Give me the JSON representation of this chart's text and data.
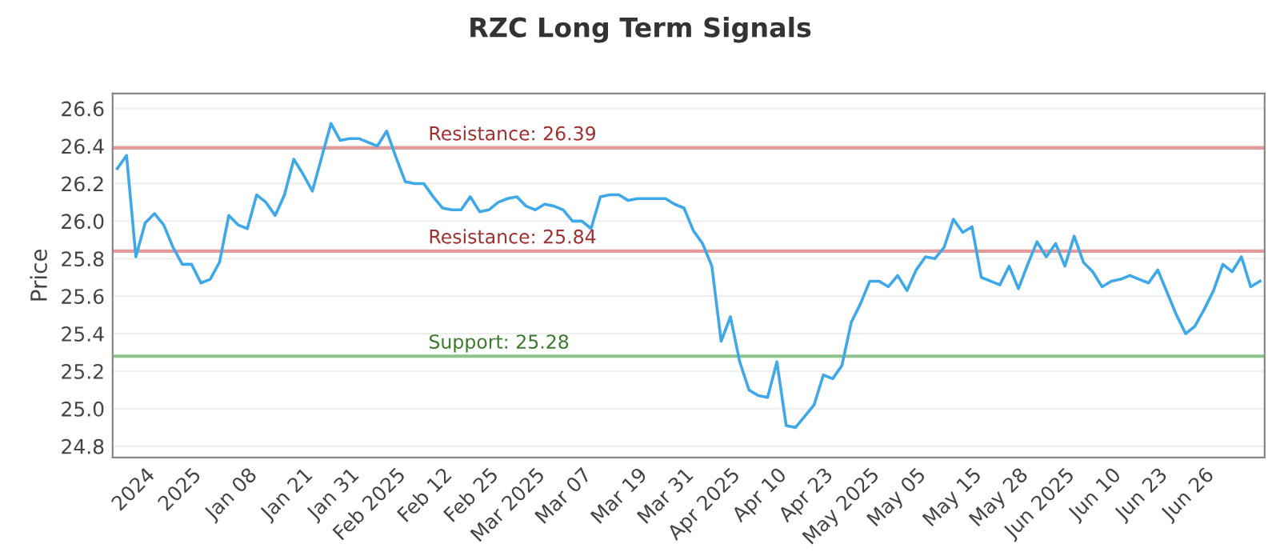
{
  "chart_data": {
    "type": "line",
    "title": "RZC Long Term Signals",
    "ylabel": "Price",
    "categories": [
      null,
      null,
      null,
      "2024",
      null,
      null,
      null,
      null,
      "2025",
      null,
      null,
      null,
      null,
      null,
      "Jan 08",
      null,
      null,
      null,
      null,
      null,
      "Jan 21",
      null,
      null,
      null,
      null,
      "Jan 31",
      null,
      null,
      null,
      null,
      "Feb 2025",
      null,
      null,
      null,
      null,
      "Feb 12",
      null,
      null,
      null,
      null,
      "Feb 25",
      null,
      null,
      null,
      null,
      "Mar 2025",
      null,
      null,
      null,
      null,
      "Mar 07",
      null,
      null,
      null,
      null,
      null,
      "Mar 19",
      null,
      null,
      null,
      null,
      "Mar 31",
      null,
      null,
      null,
      null,
      "Apr 2025",
      null,
      null,
      null,
      null,
      "Apr 10",
      null,
      null,
      null,
      null,
      "Apr 23",
      null,
      null,
      null,
      null,
      "May 2025",
      null,
      null,
      null,
      null,
      "May 05",
      null,
      null,
      null,
      null,
      null,
      "May 15",
      null,
      null,
      null,
      null,
      "May 28",
      null,
      null,
      null,
      null,
      "Jun 2025",
      null,
      null,
      null,
      null,
      "Jun 10",
      null,
      null,
      null,
      null,
      "Jun 23",
      null,
      null,
      null,
      null,
      "Jun 26",
      null,
      null,
      null,
      null,
      null,
      null
    ],
    "series": [
      {
        "color": "#3ea8e8",
        "values": [
          26.28,
          26.35,
          25.81,
          25.99,
          26.04,
          25.98,
          25.86,
          25.77,
          25.77,
          25.67,
          25.69,
          25.78,
          26.03,
          25.98,
          25.96,
          26.14,
          26.1,
          26.03,
          26.14,
          26.33,
          26.25,
          26.16,
          26.34,
          26.52,
          26.43,
          26.44,
          26.44,
          26.42,
          26.4,
          26.48,
          26.34,
          26.21,
          26.2,
          26.2,
          26.13,
          26.07,
          26.06,
          26.06,
          26.13,
          26.05,
          26.06,
          26.1,
          26.12,
          26.13,
          26.08,
          26.06,
          26.09,
          26.08,
          26.06,
          26.0,
          26.0,
          25.96,
          26.13,
          26.14,
          26.14,
          26.11,
          26.12,
          26.12,
          26.12,
          26.12,
          26.09,
          26.07,
          25.95,
          25.88,
          25.76,
          25.36,
          25.49,
          25.25,
          25.1,
          25.07,
          25.06,
          25.25,
          24.91,
          24.9,
          24.96,
          25.02,
          25.18,
          25.16,
          25.23,
          25.46,
          25.56,
          25.68,
          25.68,
          25.65,
          25.71,
          25.63,
          25.74,
          25.81,
          25.8,
          25.86,
          26.01,
          25.94,
          25.97,
          25.7,
          25.68,
          25.66,
          25.76,
          25.64,
          25.77,
          25.89,
          25.81,
          25.88,
          25.76,
          25.92,
          25.78,
          25.73,
          25.65,
          25.68,
          25.69,
          25.71,
          25.69,
          25.67,
          25.74,
          25.62,
          25.5,
          25.4,
          25.44,
          25.53,
          25.63,
          25.77,
          25.73,
          25.81,
          25.65,
          25.68
        ]
      }
    ],
    "ylim": [
      24.74,
      26.68
    ],
    "yticks": [
      24.8,
      {
        "value": 25,
        "label": "25.0"
      },
      25.2,
      25.4,
      25.6,
      25.8,
      {
        "value": 26,
        "label": "26.0"
      },
      26.2,
      26.4,
      26.6
    ],
    "grid": "y",
    "marker": "none",
    "line_style": "solid",
    "ref_lines": [
      {
        "axis": "y",
        "value": 26.39,
        "label": "Resistance: 26.39",
        "color": "#e39a9a"
      },
      {
        "axis": "y",
        "value": 25.84,
        "label": "Resistance: 25.84",
        "color": "#e39a9a"
      },
      {
        "axis": "y",
        "value": 25.28,
        "label": "Support: 25.28",
        "color": "#8cc48c"
      }
    ]
  }
}
